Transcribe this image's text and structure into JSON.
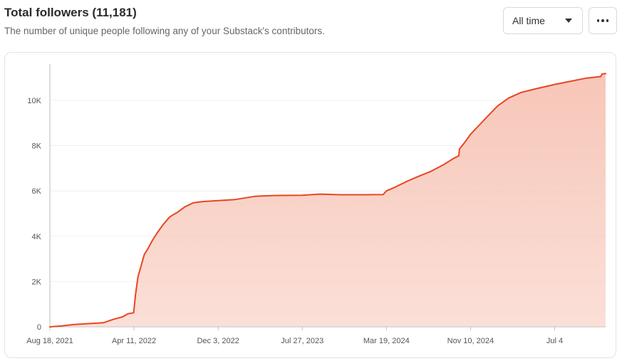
{
  "header": {
    "title": "Total followers (11,181)",
    "subtitle": "The number of unique people following any of your Substack's contributors."
  },
  "controls": {
    "range_label": "All time"
  },
  "colors": {
    "line": "#e8461f",
    "area": "#f7c6b8",
    "grid": "#efefef",
    "axis": "#bdbdbd"
  },
  "chart_data": {
    "type": "area",
    "title": "Total followers (11,181)",
    "xlabel": "",
    "ylabel": "",
    "x_type": "date",
    "xlim": [
      "2021-08-18",
      "2025-11-24"
    ],
    "ylim": [
      0,
      11600
    ],
    "yticks": [
      0,
      2000,
      4000,
      6000,
      8000,
      10000
    ],
    "ytick_labels": [
      "0",
      "2K",
      "4K",
      "6K",
      "8K",
      "10K"
    ],
    "xticks": [
      "2021-08-18",
      "2022-04-11",
      "2022-12-03",
      "2023-07-27",
      "2024-03-19",
      "2024-11-10",
      "2025-07-04"
    ],
    "xtick_labels": [
      "Aug 18, 2021",
      "Apr 11, 2022",
      "Dec 3, 2022",
      "Jul 27, 2023",
      "Mar 19, 2024",
      "Nov 10, 2024",
      "Jul 4"
    ],
    "grid": "horizontal",
    "series": [
      {
        "x": [
          "2021-08-18",
          "2021-09-20",
          "2021-10-25",
          "2021-12-05",
          "2022-01-15",
          "2022-02-10",
          "2022-02-28",
          "2022-03-10",
          "2022-03-25",
          "2022-04-10",
          "2022-04-15",
          "2022-04-22",
          "2022-05-01",
          "2022-05-10",
          "2022-05-20",
          "2022-06-01",
          "2022-06-15",
          "2022-07-01",
          "2022-07-20",
          "2022-08-10",
          "2022-09-01",
          "2022-09-25",
          "2022-10-20",
          "2022-12-03",
          "2023-01-20",
          "2023-03-15",
          "2023-04-10",
          "2023-05-20",
          "2023-07-27",
          "2023-09-15",
          "2023-11-10",
          "2024-01-20",
          "2024-03-10",
          "2024-03-19",
          "2024-04-10",
          "2024-05-15",
          "2024-06-20",
          "2024-07-20",
          "2024-08-25",
          "2024-09-25",
          "2024-10-08",
          "2024-10-10",
          "2024-10-25",
          "2024-11-10",
          "2024-12-01",
          "2024-12-25",
          "2025-01-25",
          "2025-02-25",
          "2025-04-01",
          "2025-05-15",
          "2025-07-04",
          "2025-08-20",
          "2025-10-01",
          "2025-11-10",
          "2025-11-14",
          "2025-11-24"
        ],
        "y": [
          0,
          40,
          100,
          140,
          180,
          320,
          400,
          440,
          580,
          620,
          1400,
          2200,
          2700,
          3200,
          3450,
          3800,
          4150,
          4500,
          4850,
          5050,
          5300,
          5480,
          5530,
          5570,
          5620,
          5760,
          5780,
          5800,
          5810,
          5860,
          5830,
          5830,
          5840,
          6000,
          6150,
          6420,
          6660,
          6850,
          7150,
          7450,
          7550,
          7850,
          8150,
          8500,
          8850,
          9250,
          9750,
          10100,
          10350,
          10520,
          10700,
          10850,
          10980,
          11050,
          11160,
          11181
        ]
      }
    ]
  }
}
